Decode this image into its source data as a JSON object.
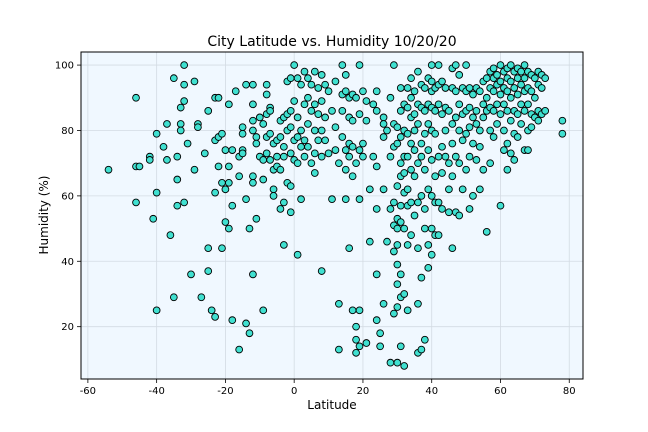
{
  "chart_data": {
    "type": "scatter",
    "title": "City Latitude vs. Humidity 10/20/20",
    "xlabel": "Latitude",
    "ylabel": "Humidity (%)",
    "xlim": [
      -62,
      84
    ],
    "ylim": [
      4,
      104
    ],
    "xticks": [
      -60,
      -40,
      -20,
      0,
      20,
      40,
      60,
      80
    ],
    "yticks": [
      20,
      40,
      60,
      80,
      100
    ],
    "grid": true,
    "colors": {
      "marker_fill": "#40e0d0",
      "marker_edge": "#000000",
      "plot_bg": "#f0f8ff",
      "grid": "#d3dbe3"
    },
    "points": [
      [
        -54,
        68
      ],
      [
        -46,
        90
      ],
      [
        -46,
        69
      ],
      [
        -46,
        58
      ],
      [
        -45,
        69
      ],
      [
        -42,
        72
      ],
      [
        -42,
        71
      ],
      [
        -41,
        53
      ],
      [
        -40,
        79
      ],
      [
        -40,
        61
      ],
      [
        -40,
        25
      ],
      [
        -38,
        75
      ],
      [
        -37,
        82
      ],
      [
        -37,
        71
      ],
      [
        -36,
        48
      ],
      [
        -35,
        96
      ],
      [
        -35,
        29
      ],
      [
        -34,
        65
      ],
      [
        -34,
        57
      ],
      [
        -34,
        72
      ],
      [
        -33,
        87
      ],
      [
        -33,
        82
      ],
      [
        -33,
        80
      ],
      [
        -32,
        100
      ],
      [
        -32,
        94
      ],
      [
        -32,
        89
      ],
      [
        -32,
        58
      ],
      [
        -31,
        76
      ],
      [
        -30,
        36
      ],
      [
        -29,
        95
      ],
      [
        -29,
        68
      ],
      [
        -28,
        82
      ],
      [
        -28,
        81
      ],
      [
        -27,
        29
      ],
      [
        -26,
        73
      ],
      [
        -25,
        86
      ],
      [
        -25,
        44
      ],
      [
        -25,
        37
      ],
      [
        -24,
        25
      ],
      [
        -23,
        90
      ],
      [
        -23,
        77
      ],
      [
        -23,
        61
      ],
      [
        -23,
        23
      ],
      [
        -22,
        90
      ],
      [
        -22,
        78
      ],
      [
        -22,
        69
      ],
      [
        -21,
        79
      ],
      [
        -21,
        64
      ],
      [
        -21,
        44
      ],
      [
        -20,
        74
      ],
      [
        -20,
        62
      ],
      [
        -20,
        52
      ],
      [
        -19,
        88
      ],
      [
        -19,
        69
      ],
      [
        -19,
        64
      ],
      [
        -19,
        50
      ],
      [
        -18,
        74
      ],
      [
        -18,
        57
      ],
      [
        -18,
        22
      ],
      [
        -17,
        92
      ],
      [
        -16,
        72
      ],
      [
        -16,
        66
      ],
      [
        -16,
        13
      ],
      [
        -15,
        79
      ],
      [
        -15,
        81
      ],
      [
        -15,
        74
      ],
      [
        -15,
        73
      ],
      [
        -14,
        94
      ],
      [
        -14,
        59
      ],
      [
        -14,
        21
      ],
      [
        -13,
        18
      ],
      [
        -13,
        50
      ],
      [
        -12,
        94
      ],
      [
        -12,
        88
      ],
      [
        -12,
        83
      ],
      [
        -12,
        80
      ],
      [
        -12,
        66
      ],
      [
        -12,
        64
      ],
      [
        -12,
        36
      ],
      [
        -11,
        78
      ],
      [
        -11,
        76
      ],
      [
        -11,
        53
      ],
      [
        -10,
        84
      ],
      [
        -10,
        72
      ],
      [
        -9,
        82
      ],
      [
        -9,
        71
      ],
      [
        -9,
        65
      ],
      [
        -9,
        25
      ],
      [
        -8,
        94
      ],
      [
        -8,
        91
      ],
      [
        -8,
        85
      ],
      [
        -8,
        78
      ],
      [
        -8,
        73
      ],
      [
        -7,
        87
      ],
      [
        -7,
        86
      ],
      [
        -7,
        79
      ],
      [
        -7,
        71
      ],
      [
        -6,
        76
      ],
      [
        -6,
        68
      ],
      [
        -6,
        62
      ],
      [
        -6,
        60
      ],
      [
        -5,
        72
      ],
      [
        -5,
        77
      ],
      [
        -5,
        69
      ],
      [
        -4,
        83
      ],
      [
        -4,
        78
      ],
      [
        -4,
        68
      ],
      [
        -4,
        56
      ],
      [
        -3,
        84
      ],
      [
        -3,
        75
      ],
      [
        -3,
        72
      ],
      [
        -3,
        58
      ],
      [
        -3,
        45
      ],
      [
        -2,
        95
      ],
      [
        -2,
        85
      ],
      [
        -2,
        80
      ],
      [
        -2,
        64
      ],
      [
        -1,
        96
      ],
      [
        -1,
        86
      ],
      [
        -1,
        81
      ],
      [
        -1,
        73
      ],
      [
        -1,
        55
      ],
      [
        -1,
        63
      ],
      [
        0,
        100
      ],
      [
        0,
        89
      ],
      [
        0,
        77
      ],
      [
        0,
        71
      ],
      [
        1,
        96
      ],
      [
        1,
        84
      ],
      [
        1,
        78
      ],
      [
        1,
        70
      ],
      [
        1,
        42
      ],
      [
        2,
        94
      ],
      [
        2,
        80
      ],
      [
        2,
        75
      ],
      [
        2,
        59
      ],
      [
        3,
        98
      ],
      [
        3,
        88
      ],
      [
        3,
        77
      ],
      [
        3,
        72
      ],
      [
        4,
        96
      ],
      [
        4,
        90
      ],
      [
        4,
        82
      ],
      [
        4,
        75
      ],
      [
        5,
        94
      ],
      [
        5,
        86
      ],
      [
        5,
        70
      ],
      [
        6,
        98
      ],
      [
        6,
        88
      ],
      [
        6,
        80
      ],
      [
        6,
        73
      ],
      [
        6,
        67
      ],
      [
        7,
        93
      ],
      [
        7,
        85
      ],
      [
        7,
        77
      ],
      [
        8,
        97
      ],
      [
        8,
        89
      ],
      [
        8,
        80
      ],
      [
        8,
        72
      ],
      [
        8,
        37
      ],
      [
        9,
        94
      ],
      [
        9,
        84
      ],
      [
        9,
        77
      ],
      [
        10,
        92
      ],
      [
        10,
        73
      ],
      [
        11,
        86
      ],
      [
        11,
        59
      ],
      [
        12,
        95
      ],
      [
        12,
        81
      ],
      [
        12,
        74
      ],
      [
        13,
        70
      ],
      [
        13,
        27
      ],
      [
        13,
        13
      ],
      [
        14,
        100
      ],
      [
        14,
        91
      ],
      [
        14,
        86
      ],
      [
        14,
        78
      ],
      [
        15,
        97
      ],
      [
        15,
        92
      ],
      [
        15,
        74
      ],
      [
        15,
        68
      ],
      [
        15,
        59
      ],
      [
        16,
        90
      ],
      [
        16,
        84
      ],
      [
        16,
        76
      ],
      [
        16,
        72
      ],
      [
        16,
        44
      ],
      [
        17,
        91
      ],
      [
        17,
        83
      ],
      [
        17,
        75
      ],
      [
        17,
        66
      ],
      [
        17,
        25
      ],
      [
        18,
        90
      ],
      [
        18,
        70
      ],
      [
        18,
        20
      ],
      [
        18,
        16
      ],
      [
        18,
        12
      ],
      [
        19,
        100
      ],
      [
        19,
        85
      ],
      [
        19,
        74
      ],
      [
        19,
        59
      ],
      [
        19,
        25
      ],
      [
        19,
        14
      ],
      [
        20,
        92
      ],
      [
        20,
        76
      ],
      [
        20,
        72
      ],
      [
        21,
        89
      ],
      [
        21,
        83
      ],
      [
        21,
        15
      ],
      [
        22,
        62
      ],
      [
        22,
        46
      ],
      [
        23,
        88
      ],
      [
        23,
        72
      ],
      [
        24,
        92
      ],
      [
        24,
        86
      ],
      [
        24,
        69
      ],
      [
        24,
        56
      ],
      [
        24,
        36
      ],
      [
        24,
        22
      ],
      [
        25,
        18
      ],
      [
        25,
        14
      ],
      [
        26,
        84
      ],
      [
        26,
        82
      ],
      [
        26,
        78
      ],
      [
        26,
        62
      ],
      [
        26,
        27
      ],
      [
        27,
        80
      ],
      [
        27,
        46
      ],
      [
        28,
        90
      ],
      [
        28,
        72
      ],
      [
        28,
        56
      ],
      [
        28,
        9
      ],
      [
        29,
        100
      ],
      [
        29,
        82
      ],
      [
        29,
        75
      ],
      [
        29,
        58
      ],
      [
        29,
        51
      ],
      [
        29,
        43
      ],
      [
        29,
        24
      ],
      [
        30,
        81
      ],
      [
        30,
        76
      ],
      [
        30,
        63
      ],
      [
        30,
        53
      ],
      [
        30,
        50
      ],
      [
        30,
        45
      ],
      [
        30,
        39
      ],
      [
        30,
        33
      ],
      [
        30,
        26
      ],
      [
        30,
        9
      ],
      [
        31,
        93
      ],
      [
        31,
        86
      ],
      [
        31,
        78
      ],
      [
        31,
        70
      ],
      [
        31,
        66
      ],
      [
        31,
        57
      ],
      [
        31,
        52
      ],
      [
        31,
        36
      ],
      [
        31,
        29
      ],
      [
        31,
        14
      ],
      [
        32,
        88
      ],
      [
        32,
        80
      ],
      [
        32,
        72
      ],
      [
        32,
        67
      ],
      [
        32,
        61
      ],
      [
        32,
        50
      ],
      [
        32,
        30
      ],
      [
        32,
        8
      ],
      [
        33,
        93
      ],
      [
        33,
        87
      ],
      [
        33,
        79
      ],
      [
        33,
        72
      ],
      [
        33,
        62
      ],
      [
        33,
        57
      ],
      [
        33,
        45
      ],
      [
        33,
        25
      ],
      [
        34,
        96
      ],
      [
        34,
        90
      ],
      [
        34,
        84
      ],
      [
        34,
        76
      ],
      [
        34,
        68
      ],
      [
        34,
        58
      ],
      [
        34,
        48
      ],
      [
        35,
        92
      ],
      [
        35,
        85
      ],
      [
        35,
        80
      ],
      [
        35,
        74
      ],
      [
        35,
        66
      ],
      [
        35,
        54
      ],
      [
        36,
        98
      ],
      [
        36,
        88
      ],
      [
        36,
        82
      ],
      [
        36,
        70
      ],
      [
        36,
        58
      ],
      [
        36,
        44
      ],
      [
        36,
        27
      ],
      [
        36,
        12
      ],
      [
        37,
        94
      ],
      [
        37,
        87
      ],
      [
        37,
        76
      ],
      [
        37,
        72
      ],
      [
        37,
        60
      ],
      [
        37,
        35
      ],
      [
        37,
        13
      ],
      [
        38,
        93
      ],
      [
        38,
        86
      ],
      [
        38,
        79
      ],
      [
        38,
        68
      ],
      [
        38,
        56
      ],
      [
        38,
        50
      ],
      [
        38,
        16
      ],
      [
        39,
        96
      ],
      [
        39,
        88
      ],
      [
        39,
        82
      ],
      [
        39,
        74
      ],
      [
        39,
        62
      ],
      [
        39,
        45
      ],
      [
        39,
        38
      ],
      [
        40,
        100
      ],
      [
        40,
        95
      ],
      [
        40,
        92
      ],
      [
        40,
        87
      ],
      [
        40,
        80
      ],
      [
        40,
        71
      ],
      [
        40,
        60
      ],
      [
        40,
        50
      ],
      [
        40,
        42
      ],
      [
        41,
        93
      ],
      [
        41,
        86
      ],
      [
        41,
        79
      ],
      [
        41,
        66
      ],
      [
        41,
        58
      ],
      [
        41,
        48
      ],
      [
        42,
        100
      ],
      [
        42,
        94
      ],
      [
        42,
        88
      ],
      [
        42,
        72
      ],
      [
        42,
        58
      ],
      [
        42,
        48
      ],
      [
        43,
        95
      ],
      [
        43,
        85
      ],
      [
        43,
        75
      ],
      [
        43,
        67
      ],
      [
        43,
        56
      ],
      [
        44,
        93
      ],
      [
        44,
        87
      ],
      [
        44,
        80
      ],
      [
        44,
        72
      ],
      [
        45,
        86
      ],
      [
        45,
        70
      ],
      [
        45,
        62
      ],
      [
        45,
        55
      ],
      [
        46,
        99
      ],
      [
        46,
        93
      ],
      [
        46,
        82
      ],
      [
        46,
        76
      ],
      [
        46,
        66
      ],
      [
        46,
        44
      ],
      [
        47,
        100
      ],
      [
        47,
        92
      ],
      [
        47,
        84
      ],
      [
        47,
        72
      ],
      [
        47,
        55
      ],
      [
        48,
        97
      ],
      [
        48,
        88
      ],
      [
        48,
        80
      ],
      [
        48,
        70
      ],
      [
        48,
        54
      ],
      [
        49,
        93
      ],
      [
        49,
        85
      ],
      [
        49,
        77
      ],
      [
        49,
        62
      ],
      [
        50,
        100
      ],
      [
        50,
        92
      ],
      [
        50,
        86
      ],
      [
        50,
        79
      ],
      [
        50,
        68
      ],
      [
        51,
        93
      ],
      [
        51,
        87
      ],
      [
        51,
        81
      ],
      [
        51,
        72
      ],
      [
        51,
        56
      ],
      [
        52,
        91
      ],
      [
        52,
        84
      ],
      [
        52,
        76
      ],
      [
        52,
        60
      ],
      [
        53,
        93
      ],
      [
        53,
        86
      ],
      [
        53,
        82
      ],
      [
        53,
        71
      ],
      [
        54,
        92
      ],
      [
        54,
        80
      ],
      [
        54,
        75
      ],
      [
        54,
        62
      ],
      [
        55,
        95
      ],
      [
        55,
        88
      ],
      [
        55,
        84
      ],
      [
        55,
        68
      ],
      [
        56,
        96
      ],
      [
        56,
        90
      ],
      [
        56,
        86
      ],
      [
        56,
        49
      ],
      [
        57,
        98
      ],
      [
        57,
        93
      ],
      [
        57,
        87
      ],
      [
        57,
        80
      ],
      [
        57,
        70
      ],
      [
        58,
        99
      ],
      [
        58,
        96
      ],
      [
        58,
        92
      ],
      [
        58,
        86
      ],
      [
        58,
        78
      ],
      [
        59,
        97
      ],
      [
        59,
        94
      ],
      [
        59,
        88
      ],
      [
        59,
        82
      ],
      [
        60,
        100
      ],
      [
        60,
        95
      ],
      [
        60,
        91
      ],
      [
        60,
        85
      ],
      [
        60,
        57
      ],
      [
        61,
        98
      ],
      [
        61,
        93
      ],
      [
        61,
        88
      ],
      [
        61,
        80
      ],
      [
        61,
        74
      ],
      [
        62,
        99
      ],
      [
        62,
        96
      ],
      [
        62,
        92
      ],
      [
        62,
        86
      ],
      [
        62,
        76
      ],
      [
        62,
        68
      ],
      [
        63,
        100
      ],
      [
        63,
        95
      ],
      [
        63,
        90
      ],
      [
        63,
        83
      ],
      [
        63,
        73
      ],
      [
        64,
        98
      ],
      [
        64,
        93
      ],
      [
        64,
        86
      ],
      [
        64,
        79
      ],
      [
        64,
        71
      ],
      [
        65,
        99
      ],
      [
        65,
        96
      ],
      [
        65,
        91
      ],
      [
        65,
        85
      ],
      [
        65,
        78
      ],
      [
        66,
        98
      ],
      [
        66,
        94
      ],
      [
        66,
        88
      ],
      [
        66,
        82
      ],
      [
        67,
        100
      ],
      [
        67,
        96
      ],
      [
        67,
        92
      ],
      [
        67,
        86
      ],
      [
        67,
        74
      ],
      [
        68,
        98
      ],
      [
        68,
        93
      ],
      [
        68,
        88
      ],
      [
        68,
        80
      ],
      [
        68,
        74
      ],
      [
        69,
        97
      ],
      [
        69,
        92
      ],
      [
        69,
        85
      ],
      [
        69,
        81
      ],
      [
        70,
        96
      ],
      [
        70,
        90
      ],
      [
        70,
        84
      ],
      [
        71,
        98
      ],
      [
        71,
        94
      ],
      [
        71,
        86
      ],
      [
        71,
        83
      ],
      [
        72,
        97
      ],
      [
        72,
        93
      ],
      [
        72,
        85
      ],
      [
        73,
        96
      ],
      [
        73,
        86
      ],
      [
        78,
        83
      ],
      [
        78,
        79
      ]
    ]
  }
}
